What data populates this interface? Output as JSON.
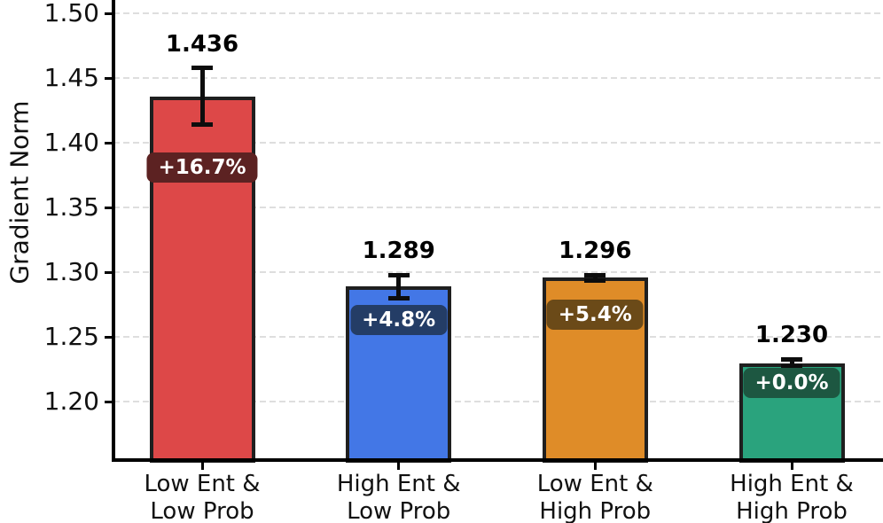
{
  "chart_data": {
    "type": "bar",
    "title": "",
    "xlabel": "",
    "ylabel": "Gradient Norm",
    "categories": [
      [
        "Low Ent &",
        "Low Prob"
      ],
      [
        "High Ent &",
        "Low Prob"
      ],
      [
        "Low Ent &",
        "High Prob"
      ],
      [
        "High Ent &",
        "High Prob"
      ]
    ],
    "values": [
      1.436,
      1.289,
      1.296,
      1.23
    ],
    "errors": [
      0.022,
      0.009,
      0.002,
      0.003
    ],
    "value_labels": [
      "1.436",
      "1.289",
      "1.296",
      "1.230"
    ],
    "pct_badges": [
      "+16.7%",
      "+4.8%",
      "+5.4%",
      "+0.0%"
    ],
    "bar_colors": [
      "#dd4848",
      "#4377e6",
      "#df8c28",
      "#2aa37d"
    ],
    "badge_colors": [
      "#5c2222",
      "#243d66",
      "#6b4a18",
      "#1d5741"
    ],
    "bar_edge_color": "#1f1f1f",
    "ytick_labels": [
      "1.20",
      "1.25",
      "1.30",
      "1.35",
      "1.40",
      "1.45",
      "1.50"
    ],
    "ytick_values": [
      1.2,
      1.25,
      1.3,
      1.35,
      1.4,
      1.45,
      1.5
    ],
    "ylim": [
      1.155,
      1.51
    ],
    "grid": "horizontal dashed",
    "legend_position": "none"
  }
}
